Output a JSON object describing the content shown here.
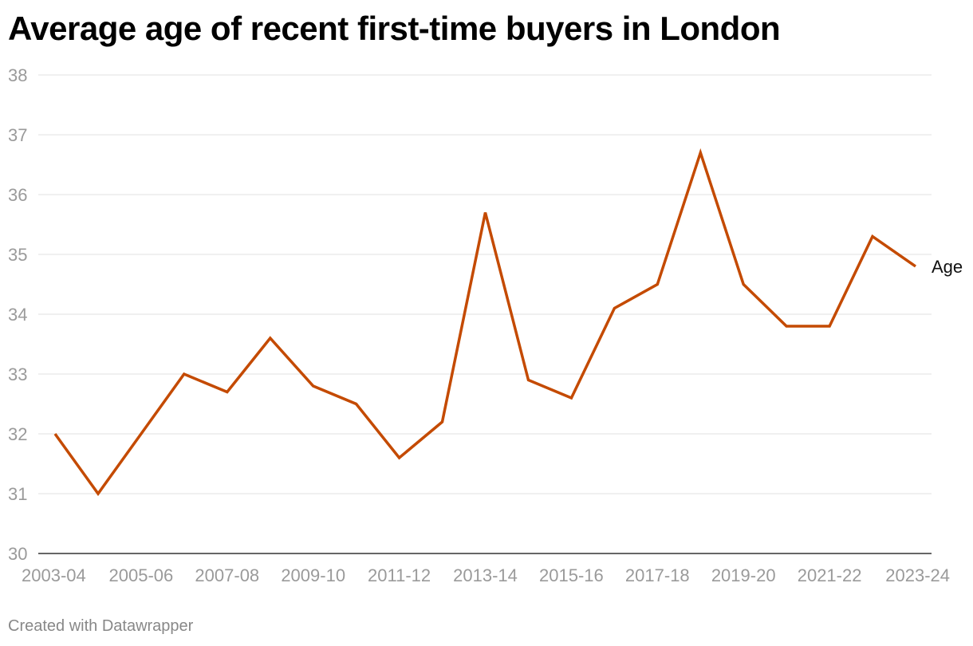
{
  "title": "Average age of recent first-time buyers in London",
  "footer": "Created with Datawrapper",
  "colors": {
    "line": "#c44a00",
    "grid": "#e2e2e2",
    "axis_text": "#9a9a9a"
  },
  "chart_data": {
    "type": "line",
    "title": "Average age of recent first-time buyers in London",
    "xlabel": "",
    "ylabel": "",
    "ylim": [
      30,
      38
    ],
    "yticks": [
      30,
      31,
      32,
      33,
      34,
      35,
      36,
      37,
      38
    ],
    "grid": true,
    "x": [
      "2003-04",
      "2004-05",
      "2005-06",
      "2006-07",
      "2007-08",
      "2008-09",
      "2009-10",
      "2010-11",
      "2011-12",
      "2012-13",
      "2013-14",
      "2014-15",
      "2015-16",
      "2016-17",
      "2017-18",
      "2018-19",
      "2019-20",
      "2020-21",
      "2021-22",
      "2022-23",
      "2023-24"
    ],
    "xticks": [
      "2003-04",
      "2005-06",
      "2007-08",
      "2009-10",
      "2011-12",
      "2013-14",
      "2015-16",
      "2017-18",
      "2019-20",
      "2021-22",
      "2023-24"
    ],
    "series": [
      {
        "name": "Age",
        "values": [
          32.0,
          31.0,
          32.0,
          33.0,
          32.7,
          33.6,
          32.8,
          32.5,
          31.6,
          32.2,
          35.7,
          32.9,
          32.6,
          34.1,
          34.5,
          36.7,
          34.5,
          33.8,
          33.8,
          35.3,
          34.8
        ]
      }
    ]
  }
}
